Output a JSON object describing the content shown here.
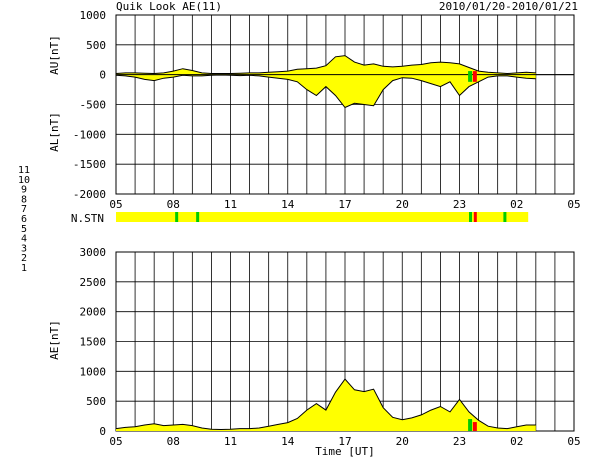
{
  "header": {
    "title": "Quik Look AE(11)",
    "date_range": "2010/01/20-2010/01/21"
  },
  "chart_data": [
    {
      "id": "au_al",
      "type": "area",
      "ylabel_top": "AU[nT]",
      "ylabel_bottom": "AL[nT]",
      "ylim": [
        -2000,
        1000
      ],
      "yticks": [
        1000,
        500,
        0,
        -500,
        -1000,
        -1500,
        -2000
      ],
      "x_tick_labels": [
        "05",
        "08",
        "11",
        "14",
        "17",
        "20",
        "23",
        "02",
        "05"
      ],
      "x": [
        5,
        5.5,
        6,
        6.5,
        7,
        7.5,
        8,
        8.5,
        9,
        9.5,
        10,
        10.5,
        11,
        11.5,
        12,
        12.5,
        13,
        13.5,
        14,
        14.5,
        15,
        15.5,
        16,
        16.5,
        17,
        17.5,
        18,
        18.5,
        19,
        19.5,
        20,
        20.5,
        21,
        21.5,
        22,
        22.5,
        23,
        23.5,
        24,
        24.5,
        25,
        25.5,
        26,
        26.5,
        27
      ],
      "au": [
        20,
        30,
        30,
        25,
        20,
        30,
        60,
        100,
        70,
        30,
        20,
        20,
        20,
        25,
        30,
        30,
        40,
        50,
        60,
        90,
        100,
        110,
        150,
        300,
        320,
        210,
        160,
        180,
        140,
        130,
        140,
        160,
        170,
        200,
        210,
        200,
        180,
        120,
        60,
        40,
        30,
        20,
        30,
        40,
        30
      ],
      "al": [
        -10,
        -20,
        -40,
        -80,
        -100,
        -60,
        -40,
        -10,
        -20,
        -20,
        -10,
        -5,
        -10,
        -15,
        -10,
        -20,
        -40,
        -60,
        -80,
        -120,
        -250,
        -350,
        -200,
        -350,
        -550,
        -480,
        -500,
        -520,
        -250,
        -100,
        -50,
        -60,
        -100,
        -150,
        -200,
        -120,
        -350,
        -200,
        -120,
        -40,
        -20,
        -20,
        -40,
        -60,
        -70
      ]
    },
    {
      "id": "ae",
      "type": "area",
      "ylabel": "AE[nT]",
      "xlabel": "Time [UT]",
      "ylim": [
        0,
        3000
      ],
      "yticks": [
        3000,
        2500,
        2000,
        1500,
        1000,
        500,
        0
      ],
      "x_tick_labels": [
        "05",
        "08",
        "11",
        "14",
        "17",
        "20",
        "23",
        "02",
        "05"
      ],
      "x": [
        5,
        5.5,
        6,
        6.5,
        7,
        7.5,
        8,
        8.5,
        9,
        9.5,
        10,
        10.5,
        11,
        11.5,
        12,
        12.5,
        13,
        13.5,
        14,
        14.5,
        15,
        15.5,
        16,
        16.5,
        17,
        17.5,
        18,
        18.5,
        19,
        19.5,
        20,
        20.5,
        21,
        21.5,
        22,
        22.5,
        23,
        23.5,
        24,
        24.5,
        25,
        25.5,
        26,
        26.5,
        27
      ],
      "values": [
        40,
        60,
        70,
        100,
        120,
        90,
        100,
        110,
        90,
        50,
        30,
        25,
        30,
        40,
        40,
        50,
        80,
        110,
        140,
        210,
        350,
        460,
        350,
        650,
        870,
        690,
        660,
        700,
        390,
        230,
        190,
        220,
        270,
        350,
        410,
        320,
        530,
        320,
        180,
        80,
        50,
        40,
        70,
        100,
        100
      ]
    }
  ],
  "station_bar": {
    "label": "N.STN",
    "fill_color": "#ffff00",
    "markers": [
      {
        "time": 8.1,
        "color": "#00cc00"
      },
      {
        "time": 9.2,
        "color": "#00cc00"
      },
      {
        "time": 23.5,
        "color": "#00cc00"
      },
      {
        "time": 23.75,
        "color": "#ff0000"
      },
      {
        "time": 25.3,
        "color": "#00cc00"
      }
    ]
  },
  "station_legend": [
    {
      "text": "11",
      "color": "#00e0e0"
    },
    {
      "text": "10",
      "color": "#ff00ff"
    },
    {
      "text": "9",
      "color": "#0000cc"
    },
    {
      "text": "8",
      "color": "#ffff00"
    },
    {
      "text": "7",
      "color": "#00cc00"
    },
    {
      "text": "6",
      "color": "#ff0000"
    },
    {
      "text": "5",
      "color": "#bbbbbb"
    },
    {
      "text": "4",
      "color": "#bbbbbb"
    },
    {
      "text": "3",
      "color": "#00aaaa"
    },
    {
      "text": "2",
      "color": "#cc00cc"
    },
    {
      "text": "1",
      "color": "#0000cc"
    }
  ],
  "colors": {
    "fill": "#ffff00",
    "grid": "#000000",
    "trace": "#000000",
    "storm_green": "#00cc00",
    "storm_red": "#ff0000"
  }
}
